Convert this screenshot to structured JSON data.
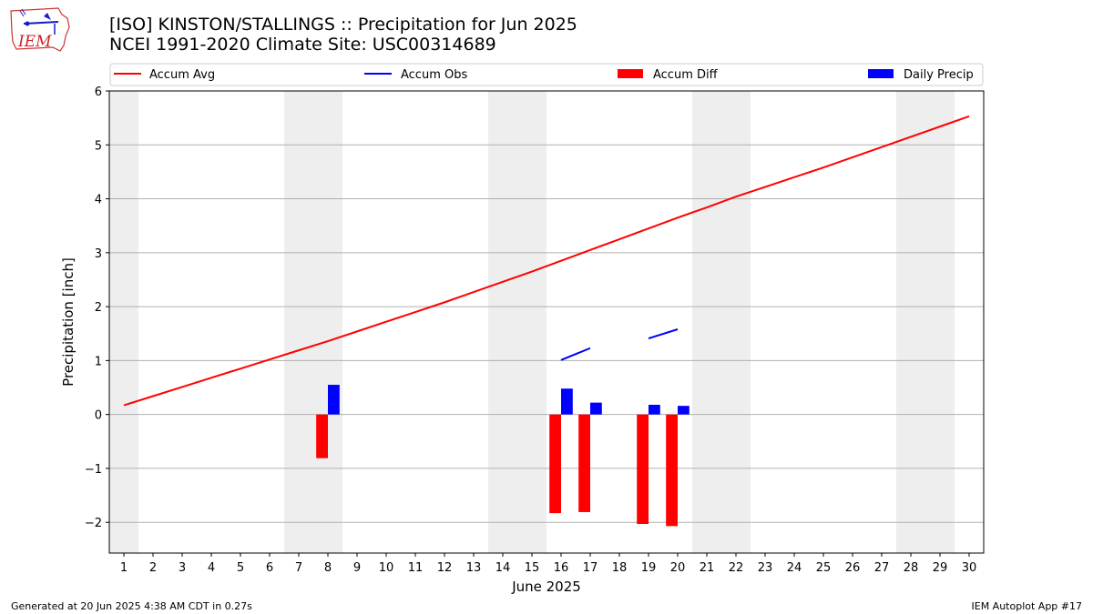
{
  "title_line1": "[ISO] KINSTON/STALLINGS :: Precipitation for Jun 2025",
  "title_line2": "NCEI 1991-2020 Climate Site: USC00314689",
  "logo_text": "IEM",
  "footer_left": "Generated at 20 Jun 2025 4:38 AM CDT in 0.27s",
  "footer_right": "IEM Autoplot App #17",
  "colors": {
    "avg": "#ff0000",
    "obs": "#0000ff",
    "diff": "#ff0000",
    "daily": "#0000ff",
    "weekend": "#eeeeee",
    "grid": "#b0b0b0"
  },
  "chart_data": {
    "type": "bar",
    "xlabel": "June 2025",
    "ylabel": "Precipitation [inch]",
    "ylim": [
      -2.57,
      6.0
    ],
    "yticks": [
      -2,
      -1,
      0,
      1,
      2,
      3,
      4,
      5,
      6
    ],
    "ytick_labels": [
      "−2",
      "−1",
      "0",
      "1",
      "2",
      "3",
      "4",
      "5",
      "6"
    ],
    "days": [
      1,
      2,
      3,
      4,
      5,
      6,
      7,
      8,
      9,
      10,
      11,
      12,
      13,
      14,
      15,
      16,
      17,
      18,
      19,
      20,
      21,
      22,
      23,
      24,
      25,
      26,
      27,
      28,
      29,
      30
    ],
    "weekend_days": [
      1,
      7,
      8,
      14,
      15,
      21,
      22,
      28,
      29
    ],
    "grid": true,
    "legend": {
      "placement": "top",
      "entries": [
        {
          "label": "Accum Avg",
          "kind": "line",
          "color": "#ff0000"
        },
        {
          "label": "Accum Obs",
          "kind": "line",
          "color": "#0000ff"
        },
        {
          "label": "Accum Diff",
          "kind": "bar",
          "color": "#ff0000"
        },
        {
          "label": "Daily Precip",
          "kind": "bar",
          "color": "#0000ff"
        }
      ]
    },
    "accum_avg": {
      "name": "Accum Avg",
      "values": [
        0.17,
        0.34,
        0.51,
        0.68,
        0.85,
        1.02,
        1.19,
        1.36,
        1.54,
        1.72,
        1.9,
        2.08,
        2.27,
        2.46,
        2.65,
        2.85,
        3.05,
        3.25,
        3.45,
        3.65,
        3.84,
        4.04,
        4.22,
        4.4,
        4.58,
        4.77,
        4.96,
        5.15,
        5.34,
        5.53
      ]
    },
    "accum_obs": {
      "name": "Accum Obs",
      "segments": [
        {
          "days": [
            16,
            17
          ],
          "values": [
            1.01,
            1.23
          ]
        },
        {
          "days": [
            19,
            20
          ],
          "values": [
            1.41,
            1.58
          ]
        }
      ]
    },
    "accum_diff": {
      "name": "Accum Diff",
      "days": [
        8,
        16,
        17,
        19,
        20
      ],
      "values": [
        -0.81,
        -1.83,
        -1.81,
        -2.03,
        -2.07
      ]
    },
    "daily_precip": {
      "name": "Daily Precip",
      "days": [
        8,
        16,
        17,
        19,
        20
      ],
      "values": [
        0.55,
        0.48,
        0.22,
        0.18,
        0.16
      ]
    }
  }
}
